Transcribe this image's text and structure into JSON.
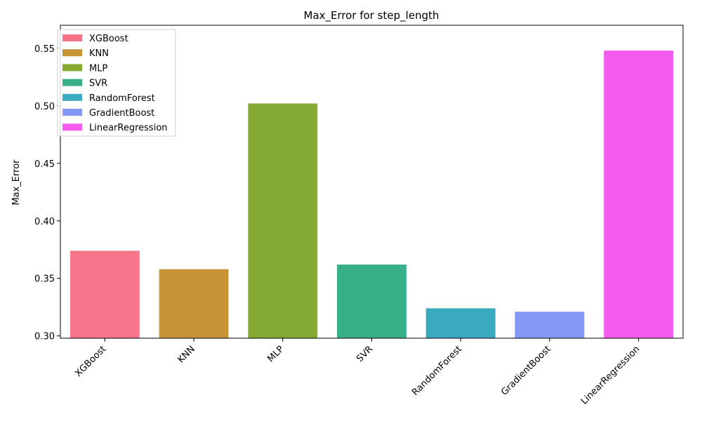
{
  "chart_data": {
    "type": "bar",
    "title": "Max_Error for step_length",
    "xlabel": "",
    "ylabel": "Max_Error",
    "categories": [
      "XGBoost",
      "KNN",
      "MLP",
      "SVR",
      "RandomForest",
      "GradientBoost",
      "LinearRegression"
    ],
    "values": [
      0.374,
      0.358,
      0.502,
      0.362,
      0.324,
      0.321,
      0.548
    ],
    "colors": [
      "#f7758a",
      "#c69434",
      "#84aa34",
      "#37b08a",
      "#39aabf",
      "#8497f4",
      "#f35ced"
    ],
    "ylim": [
      0.298,
      0.57
    ],
    "yticks": [
      0.3,
      0.35,
      0.4,
      0.45,
      0.5,
      0.55
    ],
    "ytick_labels": [
      "0.30",
      "0.35",
      "0.40",
      "0.45",
      "0.50",
      "0.55"
    ],
    "legend": {
      "placement": "top-left",
      "entries": [
        "XGBoost",
        "KNN",
        "MLP",
        "SVR",
        "RandomForest",
        "GradientBoost",
        "LinearRegression"
      ]
    },
    "grid": false
  }
}
